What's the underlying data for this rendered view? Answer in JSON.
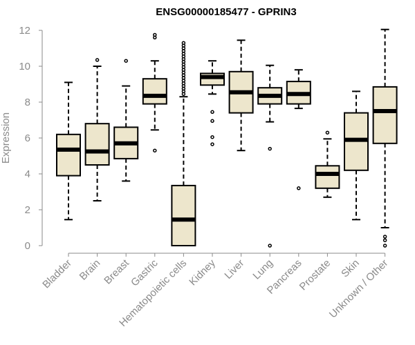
{
  "chart_data": {
    "type": "box",
    "title": "ENSG00000185477 - GPRIN3",
    "xlabel": "",
    "ylabel": "Expression",
    "ylim": [
      0,
      12
    ],
    "yticks": [
      0,
      2,
      4,
      6,
      8,
      10,
      12
    ],
    "categories": [
      "Bladder",
      "Brain",
      "Breast",
      "Gastric",
      "Hematopoietic cells",
      "Kidney",
      "Liver",
      "Lung",
      "Pancreas",
      "Prostate",
      "Skin",
      "Unknown / Other"
    ],
    "box_color": "#ede6cc",
    "series": [
      {
        "name": "Bladder",
        "whisker_low": 1.45,
        "q1": 3.9,
        "median": 5.35,
        "q3": 6.2,
        "whisker_high": 9.1,
        "outliers": []
      },
      {
        "name": "Brain",
        "whisker_low": 2.5,
        "q1": 4.5,
        "median": 5.25,
        "q3": 6.8,
        "whisker_high": 10.0,
        "outliers": [
          10.35
        ]
      },
      {
        "name": "Breast",
        "whisker_low": 3.6,
        "q1": 4.85,
        "median": 5.7,
        "q3": 6.6,
        "whisker_high": 8.9,
        "outliers": [
          10.3
        ]
      },
      {
        "name": "Gastric",
        "whisker_low": 6.45,
        "q1": 7.9,
        "median": 8.35,
        "q3": 9.3,
        "whisker_high": 10.3,
        "outliers": [
          5.3,
          11.6,
          11.75
        ]
      },
      {
        "name": "Hematopoietic cells",
        "whisker_low": 0.0,
        "q1": 0.0,
        "median": 1.45,
        "q3": 3.35,
        "whisker_high": 8.3,
        "outliers": [
          8.45,
          8.6,
          8.75,
          8.9,
          9.05,
          9.2,
          9.35,
          9.5,
          9.65,
          9.8,
          9.95,
          10.1,
          10.25,
          10.4,
          10.55,
          10.7,
          10.85,
          11.0,
          11.15,
          11.3
        ]
      },
      {
        "name": "Kidney",
        "whisker_low": 8.45,
        "q1": 8.95,
        "median": 9.4,
        "q3": 9.6,
        "whisker_high": 10.3,
        "outliers": [
          5.65,
          6.05,
          6.95,
          7.45
        ]
      },
      {
        "name": "Liver",
        "whisker_low": 5.3,
        "q1": 7.4,
        "median": 8.55,
        "q3": 9.7,
        "whisker_high": 11.45,
        "outliers": []
      },
      {
        "name": "Lung",
        "whisker_low": 6.9,
        "q1": 7.9,
        "median": 8.35,
        "q3": 8.8,
        "whisker_high": 10.05,
        "outliers": [
          0.0,
          5.4
        ]
      },
      {
        "name": "Pancreas",
        "whisker_low": 7.65,
        "q1": 7.9,
        "median": 8.45,
        "q3": 9.15,
        "whisker_high": 9.8,
        "outliers": [
          3.2
        ]
      },
      {
        "name": "Prostate",
        "whisker_low": 2.7,
        "q1": 3.2,
        "median": 4.0,
        "q3": 4.45,
        "whisker_high": 5.95,
        "outliers": [
          6.3
        ]
      },
      {
        "name": "Skin",
        "whisker_low": 1.45,
        "q1": 4.2,
        "median": 5.9,
        "q3": 7.4,
        "whisker_high": 8.6,
        "outliers": []
      },
      {
        "name": "Unknown / Other",
        "whisker_low": 1.0,
        "q1": 5.7,
        "median": 7.5,
        "q3": 8.85,
        "whisker_high": 12.05,
        "outliers": [
          0.0,
          0.3,
          0.5
        ]
      }
    ]
  }
}
